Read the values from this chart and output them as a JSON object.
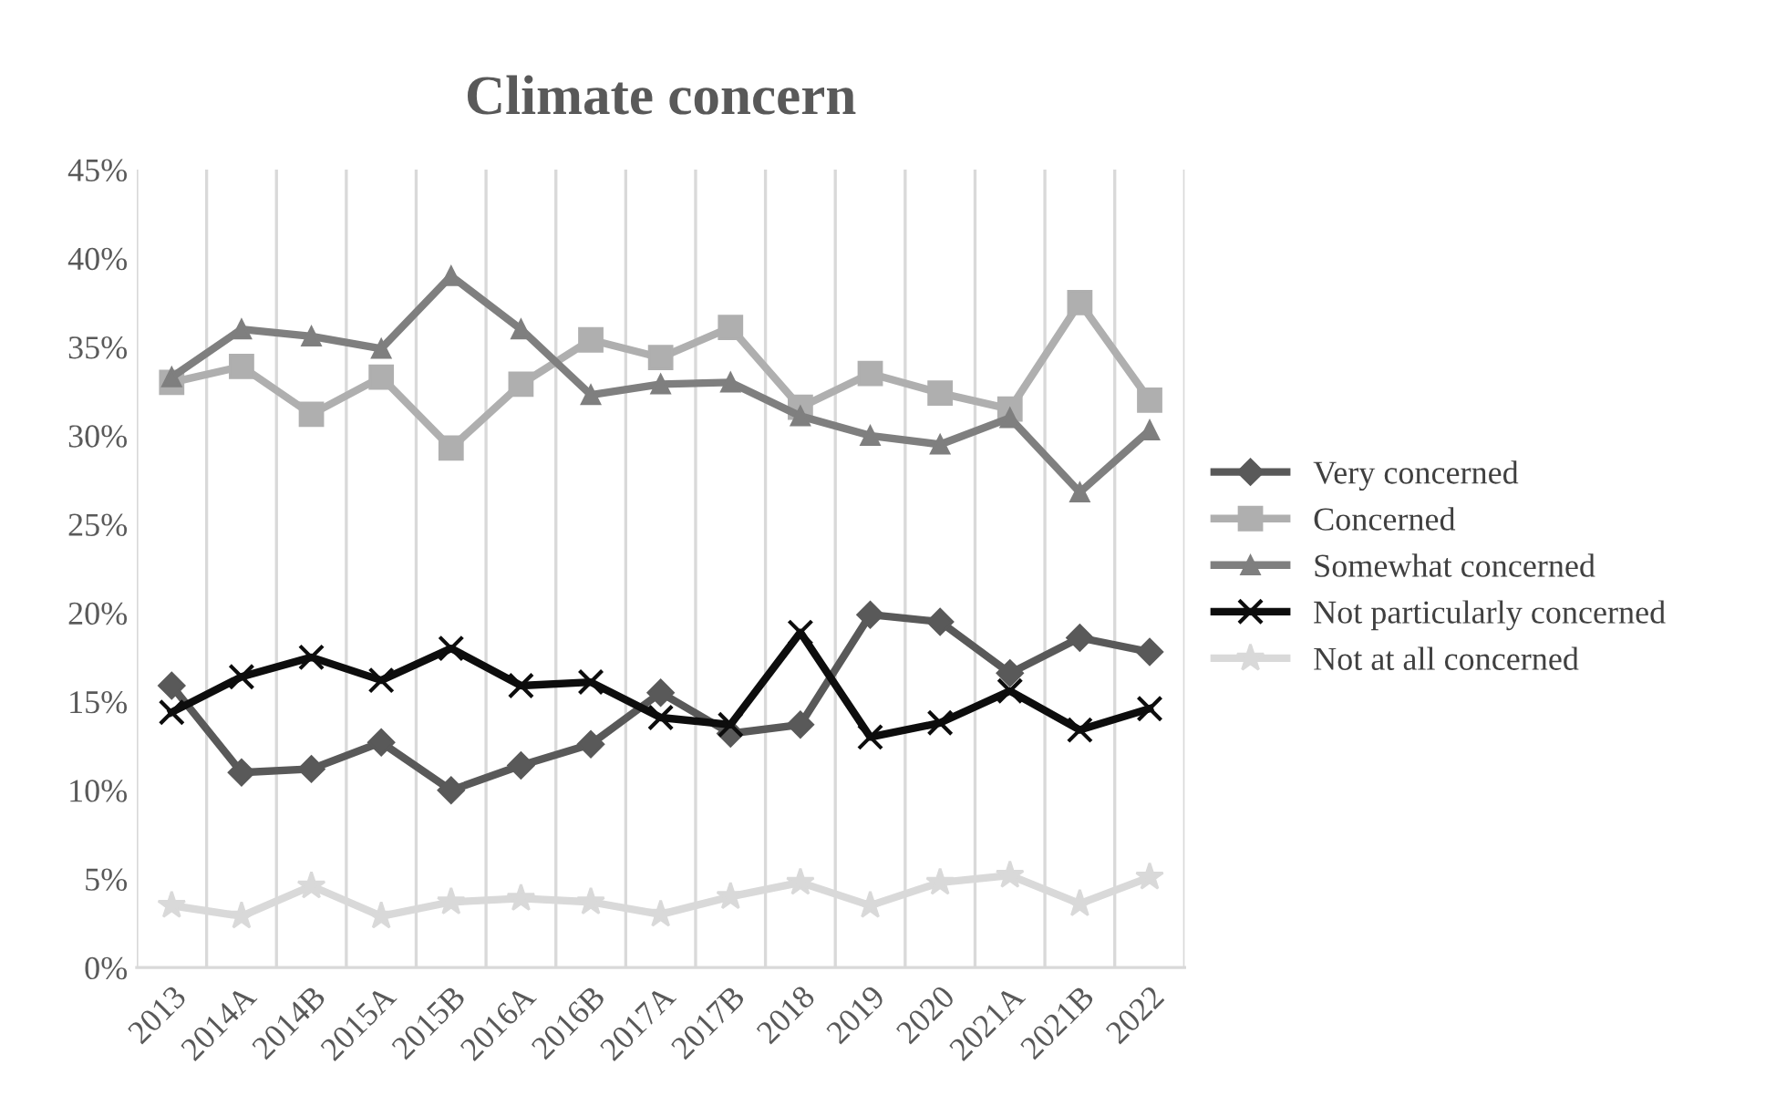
{
  "chart_data": {
    "type": "line",
    "title": "Climate concern",
    "categories": [
      "2013",
      "2014A",
      "2014B",
      "2015A",
      "2015B",
      "2016A",
      "2016B",
      "2017A",
      "2017B",
      "2018",
      "2019",
      "2020",
      "2021A",
      "2021B",
      "2022"
    ],
    "series": [
      {
        "name": "Very concerned",
        "color": "#595959",
        "marker": "diamond",
        "values": [
          15.9,
          11.0,
          11.2,
          12.7,
          10.0,
          11.4,
          12.6,
          15.5,
          13.2,
          13.7,
          19.9,
          19.5,
          16.6,
          18.6,
          17.8
        ]
      },
      {
        "name": "Concerned",
        "color": "#afafaf",
        "marker": "square",
        "values": [
          33.0,
          33.9,
          31.2,
          33.3,
          29.3,
          32.9,
          35.4,
          34.4,
          36.1,
          31.6,
          33.5,
          32.4,
          31.5,
          37.5,
          32.0
        ]
      },
      {
        "name": "Somewhat concerned",
        "color": "#7f7f7f",
        "marker": "triangle",
        "values": [
          33.3,
          36.0,
          35.6,
          34.9,
          39.0,
          36.0,
          32.3,
          32.9,
          33.0,
          31.1,
          30.0,
          29.5,
          31.0,
          26.8,
          30.3
        ]
      },
      {
        "name": "Not particularly concerned",
        "color": "#0d0d0d",
        "marker": "cross",
        "values": [
          14.4,
          16.4,
          17.5,
          16.2,
          18.0,
          15.9,
          16.1,
          14.1,
          13.7,
          18.9,
          13.0,
          13.8,
          15.6,
          13.4,
          14.6
        ]
      },
      {
        "name": "Not at all concerned",
        "color": "#d9d9d9",
        "marker": "star",
        "values": [
          3.5,
          2.9,
          4.6,
          2.9,
          3.7,
          3.9,
          3.7,
          3.0,
          4.0,
          4.8,
          3.5,
          4.8,
          5.2,
          3.6,
          5.1
        ]
      }
    ],
    "ylim": [
      0,
      45
    ],
    "yticks": [
      {
        "value": 0,
        "label": "0%"
      },
      {
        "value": 5,
        "label": "5%"
      },
      {
        "value": 10,
        "label": "10%"
      },
      {
        "value": 15,
        "label": "15%"
      },
      {
        "value": 20,
        "label": "20%"
      },
      {
        "value": 25,
        "label": "25%"
      },
      {
        "value": 30,
        "label": "30%"
      },
      {
        "value": 35,
        "label": "35%"
      },
      {
        "value": 40,
        "label": "40%"
      },
      {
        "value": 45,
        "label": "45%"
      }
    ],
    "grid": "x",
    "legend": "right",
    "line_style": "solid"
  }
}
